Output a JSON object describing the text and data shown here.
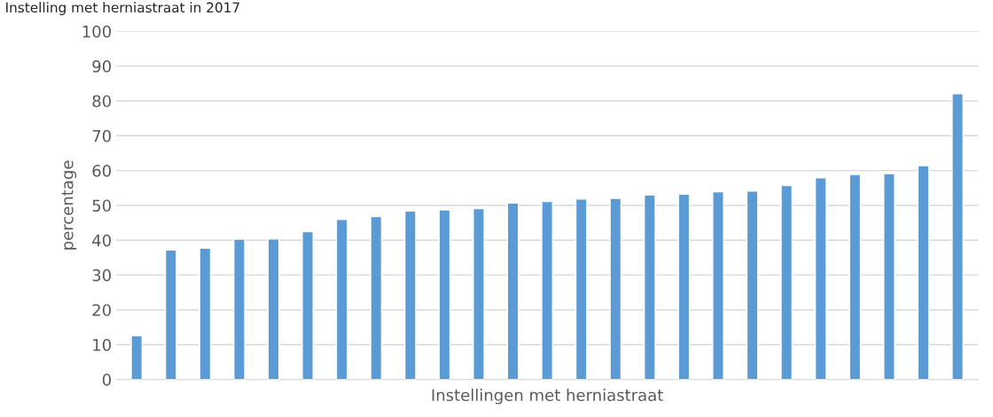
{
  "chart_data": {
    "type": "bar",
    "title": "Instelling met herniastraat in 2017",
    "xlabel": "Instellingen met herniastraat",
    "ylabel": "percentage",
    "categories": [
      null,
      null,
      null,
      null,
      null,
      null,
      null,
      null,
      null,
      null,
      null,
      null,
      null,
      null,
      null,
      null,
      null,
      null,
      null,
      null,
      null,
      null,
      null,
      null,
      null
    ],
    "values": [
      12.6,
      37.2,
      37.7,
      40.3,
      40.4,
      42.5,
      46.0,
      46.8,
      48.4,
      48.7,
      49.1,
      50.7,
      51.1,
      51.8,
      52.0,
      53.0,
      53.2,
      53.9,
      54.1,
      55.7,
      57.9,
      58.9,
      59.1,
      61.4,
      82.1
    ],
    "color": "#5b9bd5",
    "ylim": [
      0,
      100
    ],
    "yticks": [
      0,
      10,
      20,
      30,
      40,
      50,
      60,
      70,
      80,
      90,
      100
    ],
    "grid": "y"
  }
}
